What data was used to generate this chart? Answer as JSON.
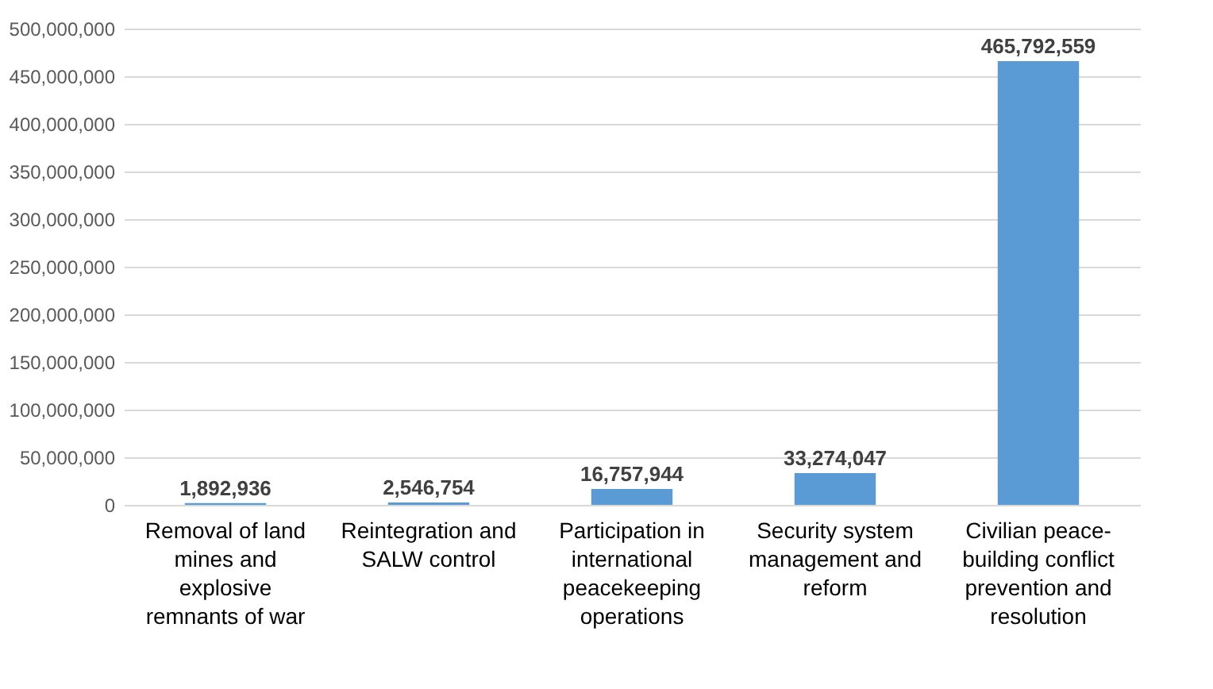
{
  "chart_data": {
    "type": "bar",
    "categories": [
      "Removal of land mines and explosive remnants of war",
      "Reintegration and SALW control",
      "Participation in international peacekeeping operations",
      "Security system management and reform",
      "Civilian peace-building conflict prevention and resolution"
    ],
    "values": [
      1892936,
      2546754,
      16757944,
      33274047,
      465792559
    ],
    "value_labels": [
      "1,892,936",
      "2,546,754",
      "16,757,944",
      "33,274,047",
      "465,792,559"
    ],
    "color": "#5b9bd5",
    "ylim": [
      0,
      500000000
    ],
    "yticks": [
      0,
      {
        "value": 50000000,
        "label": "50,000,000"
      },
      {
        "value": 100000000,
        "label": "100,000,000"
      },
      {
        "value": 150000000,
        "label": "150,000,000"
      },
      {
        "value": 200000000,
        "label": "200,000,000"
      },
      {
        "value": 250000000,
        "label": "250,000,000"
      },
      {
        "value": 300000000,
        "label": "300,000,000"
      },
      {
        "value": 350000000,
        "label": "350,000,000"
      },
      {
        "value": 400000000,
        "label": "400,000,000"
      },
      {
        "value": 450000000,
        "label": "450,000,000"
      },
      {
        "value": 500000000,
        "label": "500,000,000"
      }
    ],
    "grid": "y"
  }
}
